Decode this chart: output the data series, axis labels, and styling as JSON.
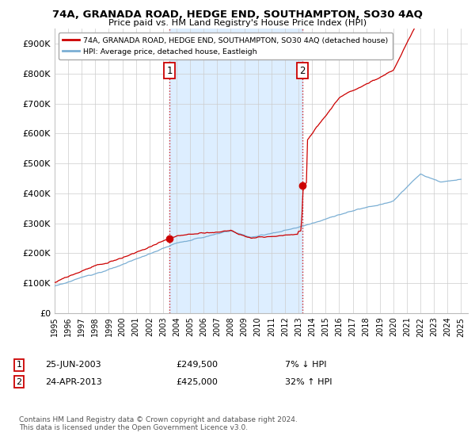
{
  "title": "74A, GRANADA ROAD, HEDGE END, SOUTHAMPTON, SO30 4AQ",
  "subtitle": "Price paid vs. HM Land Registry's House Price Index (HPI)",
  "red_label": "74A, GRANADA ROAD, HEDGE END, SOUTHAMPTON, SO30 4AQ (detached house)",
  "blue_label": "HPI: Average price, detached house, Eastleigh",
  "annotation1_date": "25-JUN-2003",
  "annotation1_price": "£249,500",
  "annotation1_hpi": "7% ↓ HPI",
  "annotation2_date": "24-APR-2013",
  "annotation2_price": "£425,000",
  "annotation2_hpi": "32% ↑ HPI",
  "footer": "Contains HM Land Registry data © Crown copyright and database right 2024.\nThis data is licensed under the Open Government Licence v3.0.",
  "ylim": [
    0,
    950000
  ],
  "yticks": [
    0,
    100000,
    200000,
    300000,
    400000,
    500000,
    600000,
    700000,
    800000,
    900000
  ],
  "ytick_labels": [
    "£0",
    "£100K",
    "£200K",
    "£300K",
    "£400K",
    "£500K",
    "£600K",
    "£700K",
    "£800K",
    "£900K"
  ],
  "red_color": "#cc0000",
  "blue_color": "#7bafd4",
  "shade_color": "#ddeeff",
  "background_color": "#ffffff",
  "grid_color": "#cccccc",
  "sale1_year": 2003.48,
  "sale1_price": 249500,
  "sale2_year": 2013.29,
  "sale2_price": 425000,
  "xmin": 1995,
  "xmax": 2025.5
}
